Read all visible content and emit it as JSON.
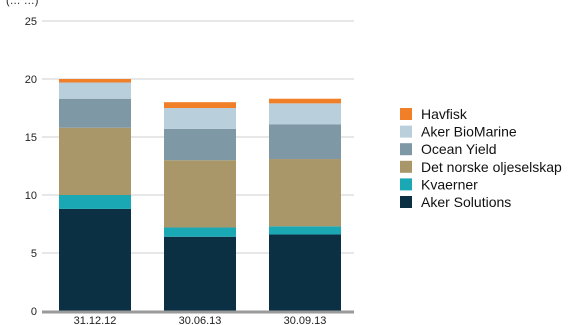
{
  "chart_data": {
    "type": "bar",
    "stacked": true,
    "title": "",
    "clipped_header_text": "(… …)",
    "categories": [
      "31.12.12",
      "30.06.13",
      "30.09.13"
    ],
    "ylim": [
      0,
      25
    ],
    "yticks": [
      0,
      5,
      10,
      15,
      20,
      25
    ],
    "grid": true,
    "legend_position": "right",
    "series": [
      {
        "name": "Aker Solutions",
        "color": "#0b3044",
        "values": [
          8.8,
          6.4,
          6.6
        ]
      },
      {
        "name": "Kvaerner",
        "color": "#1aa8b5",
        "values": [
          1.2,
          0.8,
          0.7
        ]
      },
      {
        "name": "Det norske oljeselskap",
        "color": "#a9976a",
        "values": [
          5.8,
          5.8,
          5.8
        ]
      },
      {
        "name": "Ocean Yield",
        "color": "#7e98a6",
        "values": [
          2.5,
          2.7,
          3.0
        ]
      },
      {
        "name": "Aker BioMarine",
        "color": "#b9cfdc",
        "values": [
          1.4,
          1.8,
          1.8
        ]
      },
      {
        "name": "Havfisk",
        "color": "#f07f27",
        "values": [
          0.3,
          0.5,
          0.4
        ]
      }
    ]
  }
}
